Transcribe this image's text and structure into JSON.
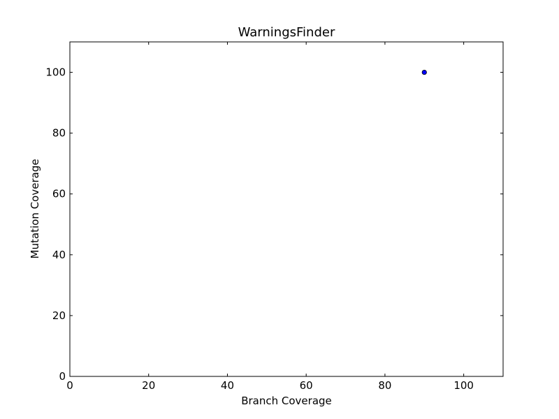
{
  "chart_data": {
    "type": "scatter",
    "title": "WarningsFinder",
    "xlabel": "Branch Coverage",
    "ylabel": "Mutation Coverage",
    "xlim": [
      0,
      110
    ],
    "ylim": [
      0,
      110
    ],
    "xticks": [
      0,
      20,
      40,
      60,
      80,
      100
    ],
    "yticks": [
      0,
      20,
      40,
      60,
      80,
      100
    ],
    "grid": false,
    "series": [
      {
        "points": [
          {
            "x": 90,
            "y": 100
          }
        ],
        "color": "#0000ff"
      }
    ]
  }
}
